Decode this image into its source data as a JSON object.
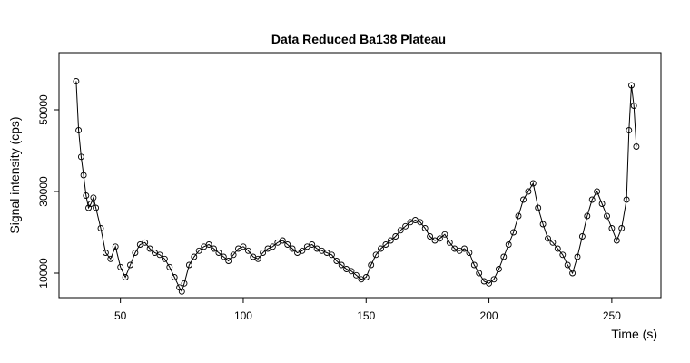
{
  "chart_data": {
    "type": "scatter",
    "title": "Data Reduced Ba138 Plateau",
    "xlabel": "Time (s)",
    "ylabel": "Signal intensity (cps)",
    "xlim": [
      25,
      270
    ],
    "ylim": [
      4000,
      64000
    ],
    "x_ticks": [
      50,
      100,
      150,
      200,
      250
    ],
    "y_ticks": [
      10000,
      30000,
      50000
    ],
    "grid": false,
    "legend": "none",
    "style": "points connected by line (R type='b')",
    "x": [
      32,
      33,
      34,
      35,
      36,
      37,
      38,
      39,
      40,
      42,
      44,
      46,
      48,
      50,
      52,
      54,
      56,
      58,
      60,
      62,
      64,
      66,
      68,
      70,
      72,
      74,
      75,
      76,
      78,
      80,
      82,
      84,
      86,
      88,
      90,
      92,
      94,
      96,
      98,
      100,
      102,
      104,
      106,
      108,
      110,
      112,
      114,
      116,
      118,
      120,
      122,
      124,
      126,
      128,
      130,
      132,
      134,
      136,
      138,
      140,
      142,
      144,
      146,
      148,
      150,
      152,
      154,
      156,
      158,
      160,
      162,
      164,
      166,
      168,
      170,
      172,
      174,
      176,
      178,
      180,
      182,
      184,
      186,
      188,
      190,
      192,
      194,
      196,
      198,
      200,
      202,
      204,
      206,
      208,
      210,
      212,
      214,
      216,
      218,
      220,
      222,
      224,
      226,
      228,
      230,
      232,
      234,
      236,
      238,
      240,
      242,
      244,
      246,
      248,
      250,
      252,
      254,
      256,
      257,
      258,
      259,
      260
    ],
    "y": [
      57000,
      45000,
      38500,
      34000,
      29000,
      26000,
      27000,
      28500,
      26000,
      21000,
      15000,
      13500,
      16500,
      11500,
      9000,
      12000,
      15000,
      17000,
      17500,
      16000,
      15000,
      14500,
      13500,
      11500,
      9000,
      6500,
      5500,
      7500,
      12000,
      14000,
      15500,
      16500,
      17000,
      16000,
      15000,
      14000,
      13000,
      14500,
      16000,
      16500,
      15500,
      14000,
      13500,
      15000,
      16000,
      16500,
      17500,
      18000,
      17000,
      16000,
      15000,
      15500,
      16500,
      17000,
      16000,
      15500,
      15000,
      14500,
      13000,
      12000,
      11000,
      10500,
      9500,
      8500,
      9000,
      12000,
      14500,
      16000,
      17000,
      18000,
      19000,
      20500,
      21500,
      22500,
      23000,
      22500,
      21000,
      19000,
      18000,
      18500,
      19500,
      17500,
      16000,
      15500,
      16000,
      15000,
      12000,
      10000,
      8000,
      7500,
      8500,
      11000,
      14000,
      17000,
      20000,
      24000,
      28000,
      30000,
      32000,
      26000,
      22000,
      18500,
      17500,
      16000,
      14500,
      12000,
      10000,
      14000,
      19000,
      24000,
      28000,
      30000,
      27000,
      24000,
      21000,
      18000,
      21000,
      28000,
      45000,
      56000,
      51000,
      41000
    ]
  }
}
